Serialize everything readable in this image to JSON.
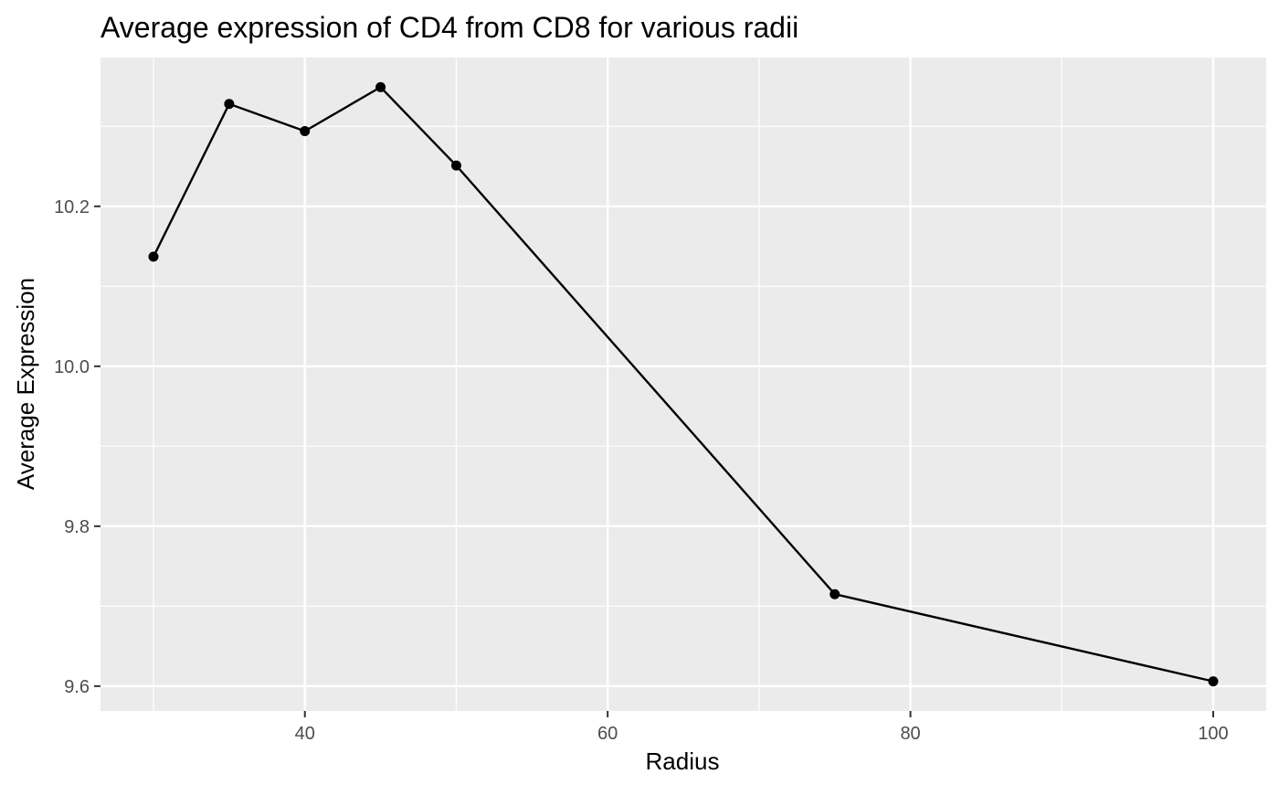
{
  "chart_data": {
    "type": "line",
    "title": "Average expression of CD4 from CD8 for various radii",
    "xlabel": "Radius",
    "ylabel": "Average Expression",
    "x": [
      30,
      35,
      40,
      45,
      50,
      75,
      100
    ],
    "series": [
      {
        "values": [
          10.137,
          10.328,
          10.294,
          10.349,
          10.251,
          9.715,
          9.606
        ]
      }
    ],
    "xlim": [
      26.5,
      103.5
    ],
    "ylim": [
      9.569,
      10.386
    ],
    "x_ticks": [
      "40",
      "60",
      "80",
      "100"
    ],
    "x_tick_values": [
      40,
      60,
      80,
      100
    ],
    "y_ticks": [
      "9.6",
      "9.8",
      "10.0",
      "10.2"
    ],
    "y_tick_values": [
      9.6,
      9.8,
      10.0,
      10.2
    ],
    "grid": true,
    "legend": "none",
    "colors": {
      "panel": "#EBEBEB",
      "grid": "#FFFFFF",
      "line": "#000000",
      "point": "#000000",
      "tick": "#333333",
      "tick_label": "#4D4D4D"
    }
  }
}
